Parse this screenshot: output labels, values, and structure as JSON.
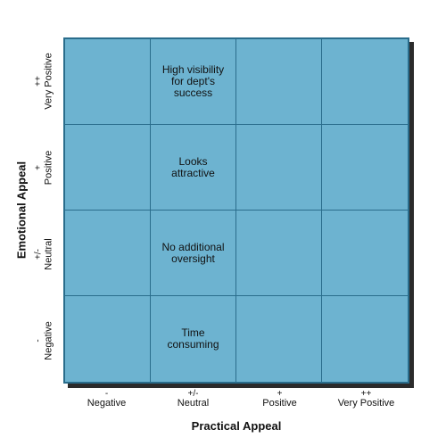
{
  "x_axis": {
    "title": "Practical Appeal",
    "ticks": [
      {
        "symbol": "-",
        "label": "Negative"
      },
      {
        "symbol": "+/-",
        "label": "Neutral"
      },
      {
        "symbol": "+",
        "label": "Positive"
      },
      {
        "symbol": "++",
        "label": "Very Positive"
      }
    ]
  },
  "y_axis": {
    "title": "Emotional Appeal",
    "ticks": [
      {
        "symbol": "++",
        "label": "Very Positive"
      },
      {
        "symbol": "+",
        "label": "Positive"
      },
      {
        "symbol": "+/-",
        "label": "Neutral"
      },
      {
        "symbol": "-",
        "label": "Negative"
      }
    ]
  },
  "cells": [
    [
      "",
      "High visibility\nfor dept's\nsuccess",
      "",
      ""
    ],
    [
      "",
      "Looks\nattractive",
      "",
      ""
    ],
    [
      "",
      "No additional\noversight",
      "",
      ""
    ],
    [
      "",
      "Time\nconsuming",
      "",
      ""
    ]
  ],
  "colors": {
    "cell_fill": "#6db3d0",
    "grid_line": "#2a6d8c",
    "shadow": "#2b2b2b"
  }
}
